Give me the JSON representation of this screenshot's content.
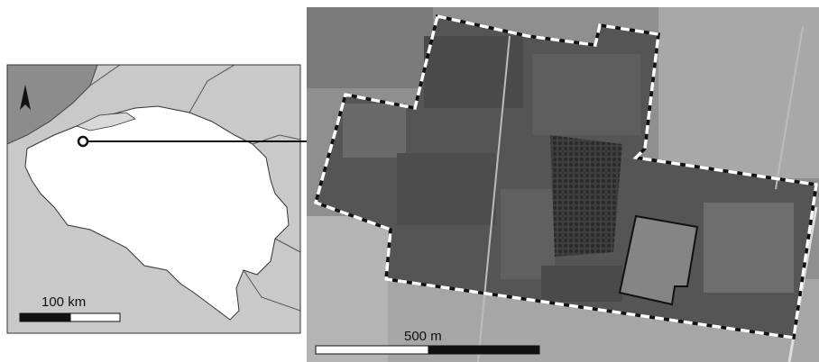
{
  "left_map": {
    "scale_label": "100 km"
  },
  "right_map": {
    "scale_label": "500 m"
  }
}
